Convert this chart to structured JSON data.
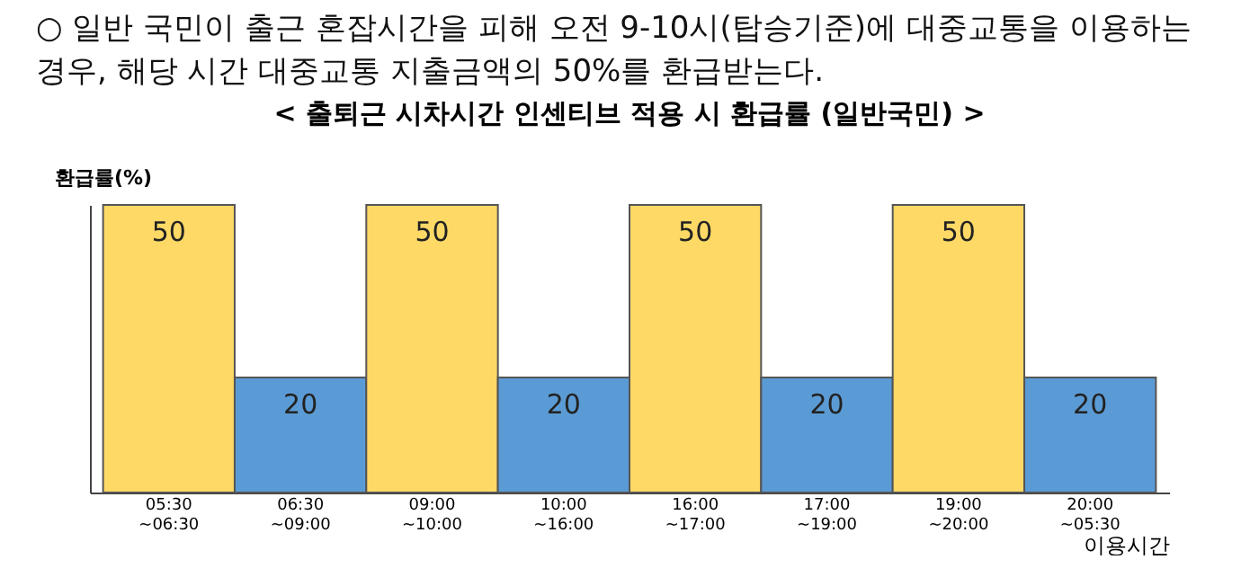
{
  "chart_data": {
    "type": "bar",
    "title": "< 출퇴근 시차시간 인센티브 적용 시 환급률 (일반국민) >",
    "annotations": [
      "○ 일반 국민이 출근 혼잡시간을 피해 오전 9-10시(탑승기준)에 대중교통을 이용하는 경우, 해당 시간 대중교통 지출금액의 50%를 환급받는다."
    ],
    "categories": [
      "05:30 ~06:30",
      "06:30 ~09:00",
      "09:00 ~10:00",
      "10:00 ~16:00",
      "16:00 ~17:00",
      "17:00 ~19:00",
      "19:00 ~20:00",
      "20:00 ~05:30"
    ],
    "values": [
      50,
      20,
      50,
      20,
      50,
      20,
      50,
      20
    ],
    "colors": [
      "#ffd966",
      "#5b9bd5",
      "#ffd966",
      "#5b9bd5",
      "#ffd966",
      "#5b9bd5",
      "#ffd966",
      "#5b9bd5"
    ],
    "data_labels": true,
    "ylabel": "환급률(%)",
    "xlabel": "이용시간",
    "tick_labels": "x"
  }
}
